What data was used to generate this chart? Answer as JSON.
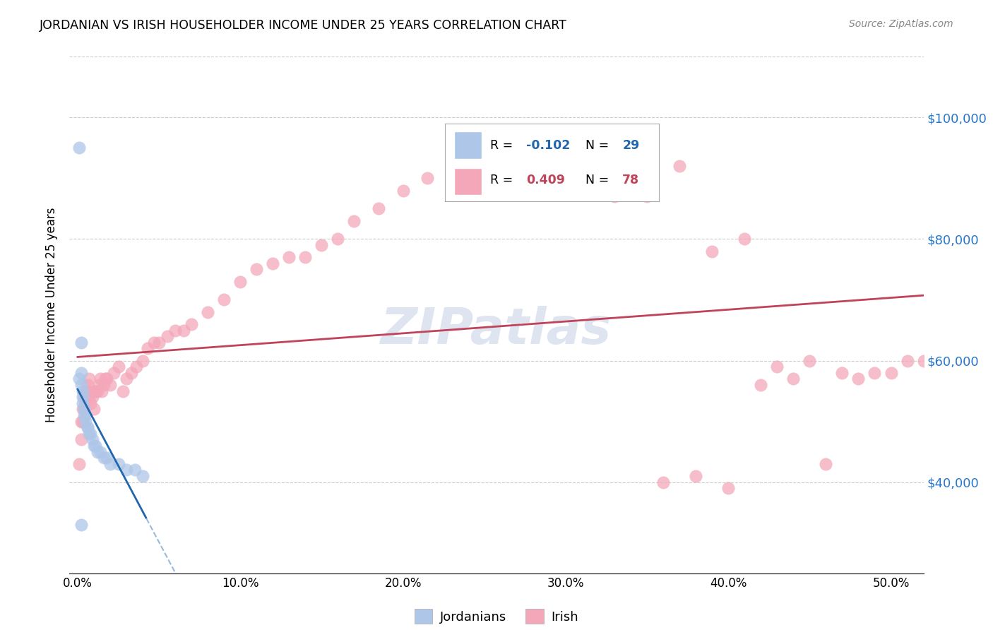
{
  "title": "JORDANIAN VS IRISH HOUSEHOLDER INCOME UNDER 25 YEARS CORRELATION CHART",
  "source": "Source: ZipAtlas.com",
  "ylabel": "Householder Income Under 25 years",
  "xlabel_ticks": [
    "0.0%",
    "10.0%",
    "20.0%",
    "30.0%",
    "40.0%",
    "50.0%"
  ],
  "xlabel_tick_vals": [
    0.0,
    0.1,
    0.2,
    0.3,
    0.4,
    0.5
  ],
  "ylabel_ticks": [
    "$40,000",
    "$60,000",
    "$80,000",
    "$100,000"
  ],
  "ylabel_tick_vals": [
    40000,
    60000,
    80000,
    100000
  ],
  "xlim": [
    -0.005,
    0.52
  ],
  "ylim": [
    25000,
    110000
  ],
  "jordanian_R": -0.102,
  "jordanian_N": 29,
  "irish_R": 0.409,
  "irish_N": 78,
  "jordanian_color": "#aec6e8",
  "irish_color": "#f4a7b9",
  "jordanian_line_color": "#2166ac",
  "irish_line_color": "#c0435a",
  "jordanian_x": [
    0.001,
    0.001,
    0.002,
    0.002,
    0.002,
    0.003,
    0.003,
    0.003,
    0.004,
    0.004,
    0.005,
    0.005,
    0.006,
    0.006,
    0.007,
    0.008,
    0.009,
    0.01,
    0.011,
    0.012,
    0.014,
    0.016,
    0.018,
    0.02,
    0.025,
    0.03,
    0.035,
    0.04,
    0.002
  ],
  "jordanian_y": [
    95000,
    57000,
    63000,
    58000,
    56000,
    55000,
    54000,
    53000,
    52000,
    51000,
    51000,
    50000,
    49000,
    49000,
    48000,
    48000,
    47000,
    46000,
    46000,
    45000,
    45000,
    44000,
    44000,
    43000,
    43000,
    42000,
    42000,
    41000,
    33000
  ],
  "irish_x": [
    0.001,
    0.002,
    0.002,
    0.003,
    0.003,
    0.004,
    0.004,
    0.005,
    0.005,
    0.006,
    0.006,
    0.007,
    0.007,
    0.008,
    0.008,
    0.009,
    0.01,
    0.01,
    0.011,
    0.012,
    0.013,
    0.014,
    0.015,
    0.016,
    0.017,
    0.018,
    0.02,
    0.022,
    0.025,
    0.028,
    0.03,
    0.033,
    0.036,
    0.04,
    0.043,
    0.047,
    0.05,
    0.055,
    0.06,
    0.065,
    0.07,
    0.08,
    0.09,
    0.1,
    0.11,
    0.12,
    0.13,
    0.14,
    0.15,
    0.16,
    0.17,
    0.185,
    0.2,
    0.215,
    0.23,
    0.25,
    0.27,
    0.29,
    0.31,
    0.33,
    0.35,
    0.37,
    0.39,
    0.41,
    0.43,
    0.45,
    0.47,
    0.49,
    0.5,
    0.51,
    0.52,
    0.48,
    0.46,
    0.44,
    0.42,
    0.4,
    0.38,
    0.36
  ],
  "irish_y": [
    43000,
    47000,
    50000,
    50000,
    52000,
    52000,
    54000,
    53000,
    55000,
    55000,
    56000,
    54000,
    57000,
    55000,
    53000,
    54000,
    55000,
    52000,
    55000,
    55000,
    56000,
    57000,
    55000,
    56000,
    57000,
    57000,
    56000,
    58000,
    59000,
    55000,
    57000,
    58000,
    59000,
    60000,
    62000,
    63000,
    63000,
    64000,
    65000,
    65000,
    66000,
    68000,
    70000,
    73000,
    75000,
    76000,
    77000,
    77000,
    79000,
    80000,
    83000,
    85000,
    88000,
    90000,
    93000,
    93000,
    95000,
    96000,
    91000,
    87000,
    87000,
    92000,
    78000,
    80000,
    59000,
    60000,
    58000,
    58000,
    58000,
    60000,
    60000,
    57000,
    43000,
    57000,
    56000,
    39000,
    41000,
    40000
  ],
  "jord_line_x0": 0.0,
  "jord_line_x1": 0.52,
  "irish_line_x0": 0.0,
  "irish_line_x1": 0.52,
  "watermark_text": "ZIPatlas",
  "watermark_color": "#c8d4e8",
  "legend_R1_color": "#2166ac",
  "legend_R2_color": "#c0435a",
  "legend_N1_color": "#2166ac",
  "legend_N2_color": "#c0435a"
}
